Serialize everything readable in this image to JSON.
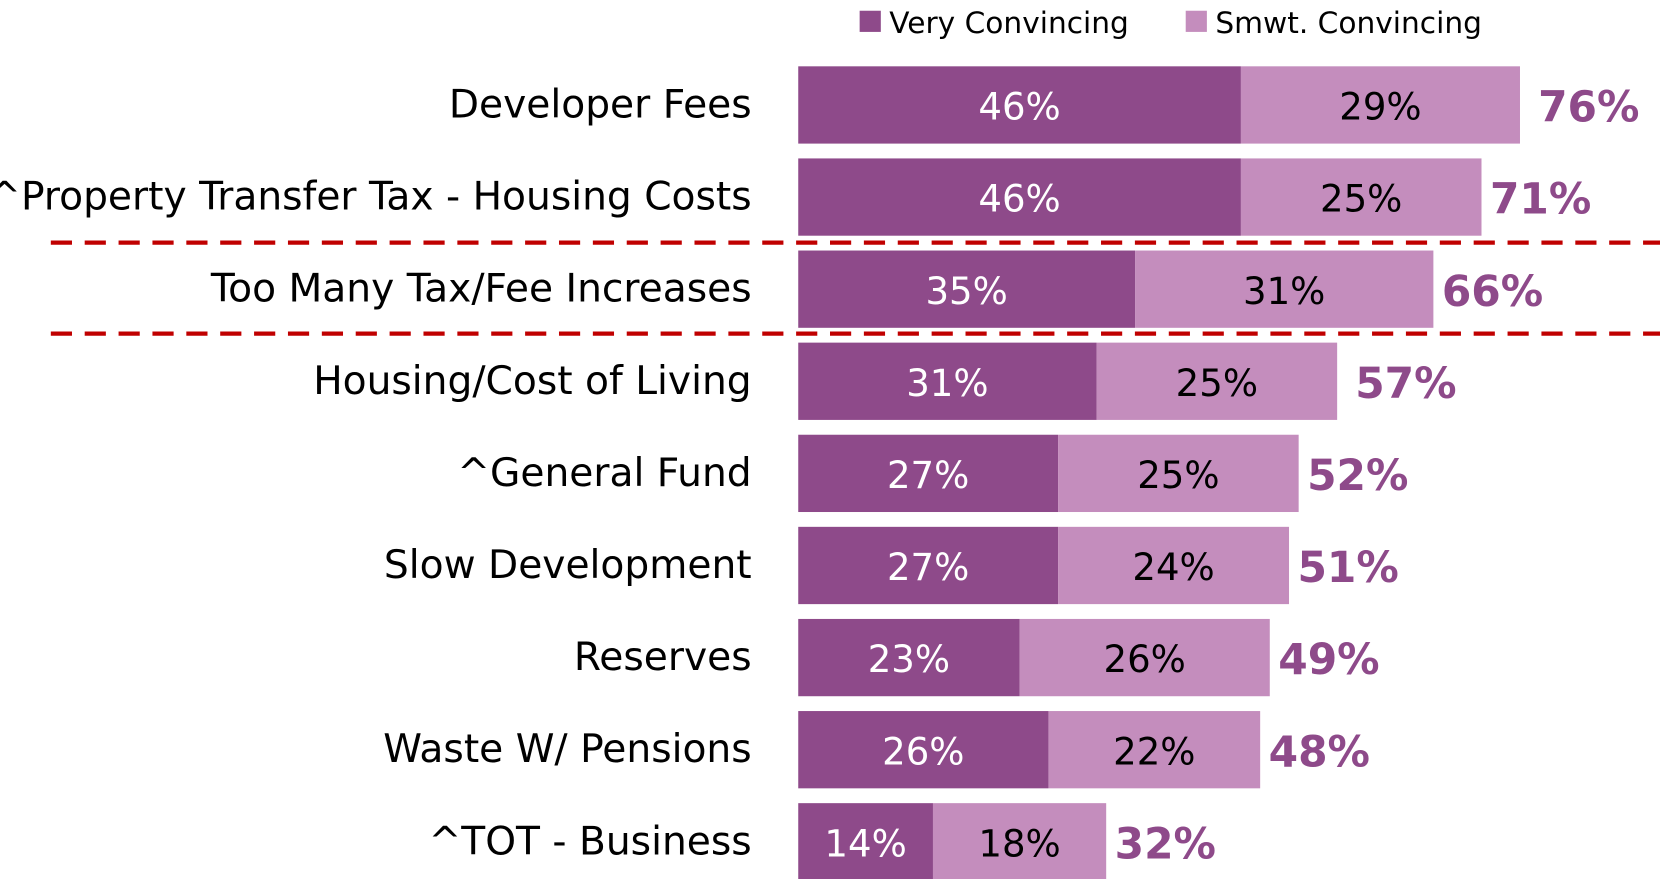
{
  "chart_data": {
    "type": "stacked-bar-horizontal",
    "categories": [
      "Developer Fees",
      "^Property Transfer Tax - Housing Costs",
      "Too Many Tax/Fee Increases",
      "Housing/Cost of Living",
      "^General Fund",
      "Slow Development",
      "Reserves",
      "Waste W/ Pensions",
      "^TOT - Business"
    ],
    "series": [
      {
        "name": "Very Convincing",
        "color": "#8e4a8a",
        "values": [
          46,
          46,
          35,
          31,
          27,
          27,
          23,
          26,
          14
        ],
        "value_labels": [
          "46%",
          "46%",
          "35%",
          "31%",
          "27%",
          "27%",
          "23%",
          "26%",
          "14%"
        ]
      },
      {
        "name": "Smwt. Convincing",
        "color": "#c48dbd",
        "values": [
          29,
          25,
          31,
          25,
          25,
          24,
          26,
          22,
          18
        ],
        "value_labels": [
          "29%",
          "25%",
          "31%",
          "25%",
          "25%",
          "24%",
          "26%",
          "22%",
          "18%"
        ]
      }
    ],
    "totals": [
      76,
      71,
      66,
      57,
      52,
      51,
      49,
      48,
      32
    ],
    "total_labels": [
      "76%",
      "71%",
      "66%",
      "57%",
      "52%",
      "51%",
      "49%",
      "48%",
      "32%"
    ],
    "total_color": "#8e4a8a",
    "legend": "top"
  }
}
